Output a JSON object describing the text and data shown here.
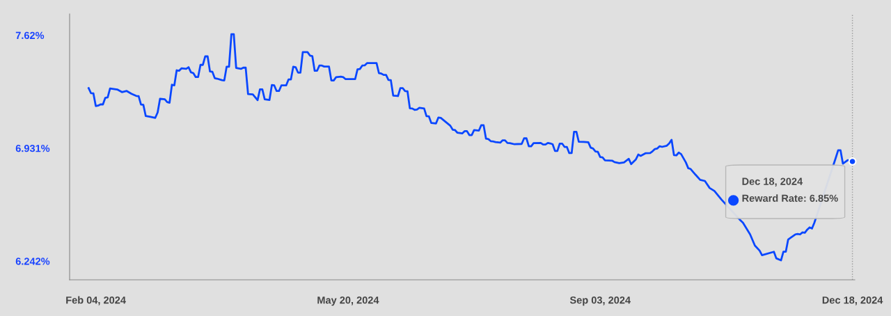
{
  "chart_data": {
    "type": "line",
    "x": [
      "2024-02-01",
      "2024-02-02",
      "2024-02-03",
      "2024-02-04",
      "2024-02-05",
      "2024-02-06",
      "2024-02-07",
      "2024-02-08",
      "2024-02-09",
      "2024-02-10",
      "2024-02-11",
      "2024-02-13",
      "2024-02-15",
      "2024-02-17",
      "2024-02-19",
      "2024-02-21",
      "2024-02-22",
      "2024-02-23",
      "2024-02-24",
      "2024-02-25",
      "2024-02-27",
      "2024-02-29",
      "2024-03-01",
      "2024-03-02",
      "2024-03-04",
      "2024-03-05",
      "2024-03-06",
      "2024-03-07",
      "2024-03-08",
      "2024-03-09",
      "2024-03-10",
      "2024-03-11",
      "2024-03-13",
      "2024-03-14",
      "2024-03-15",
      "2024-03-16",
      "2024-03-17",
      "2024-03-18",
      "2024-03-19",
      "2024-03-20",
      "2024-03-21",
      "2024-03-22",
      "2024-03-23",
      "2024-03-24",
      "2024-03-25",
      "2024-03-26",
      "2024-03-28",
      "2024-03-29",
      "2024-03-30",
      "2024-03-31",
      "2024-04-01",
      "2024-04-02",
      "2024-04-03",
      "2024-04-05",
      "2024-04-06",
      "2024-04-07",
      "2024-04-08",
      "2024-04-10",
      "2024-04-12",
      "2024-04-13",
      "2024-04-14",
      "2024-04-15",
      "2024-04-17",
      "2024-04-18",
      "2024-04-19",
      "2024-04-20",
      "2024-04-21",
      "2024-04-22",
      "2024-04-24",
      "2024-04-25",
      "2024-04-26",
      "2024-04-27",
      "2024-04-28",
      "2024-04-29",
      "2024-04-30",
      "2024-05-01",
      "2024-05-03",
      "2024-05-04",
      "2024-05-05",
      "2024-05-06",
      "2024-05-07",
      "2024-05-08",
      "2024-05-09",
      "2024-05-10",
      "2024-05-12",
      "2024-05-13",
      "2024-05-14",
      "2024-05-15",
      "2024-05-17",
      "2024-05-18",
      "2024-05-19",
      "2024-05-23",
      "2024-05-24",
      "2024-05-25",
      "2024-05-26",
      "2024-05-27",
      "2024-05-28",
      "2024-06-01",
      "2024-06-02",
      "2024-06-03",
      "2024-06-04",
      "2024-06-05",
      "2024-06-06",
      "2024-06-07",
      "2024-06-08",
      "2024-06-10",
      "2024-06-11",
      "2024-06-12",
      "2024-06-13",
      "2024-06-14",
      "2024-06-15",
      "2024-06-16",
      "2024-06-17",
      "2024-06-18",
      "2024-06-19",
      "2024-06-21",
      "2024-06-22",
      "2024-06-23",
      "2024-06-24",
      "2024-06-26",
      "2024-06-27",
      "2024-06-28",
      "2024-07-02",
      "2024-07-03",
      "2024-07-04",
      "2024-07-05",
      "2024-07-07",
      "2024-07-08",
      "2024-07-09",
      "2024-07-10",
      "2024-07-11",
      "2024-07-12",
      "2024-07-14",
      "2024-07-15",
      "2024-07-16",
      "2024-07-17",
      "2024-07-18",
      "2024-07-19",
      "2024-07-20",
      "2024-07-21",
      "2024-07-23",
      "2024-07-24",
      "2024-07-25",
      "2024-07-26",
      "2024-07-27",
      "2024-07-29",
      "2024-08-01",
      "2024-08-02",
      "2024-08-03",
      "2024-08-04",
      "2024-08-05",
      "2024-08-06",
      "2024-08-09",
      "2024-08-10",
      "2024-08-11",
      "2024-08-12",
      "2024-08-13",
      "2024-08-14",
      "2024-08-15",
      "2024-08-16",
      "2024-08-17",
      "2024-08-18",
      "2024-08-19",
      "2024-08-20",
      "2024-08-21",
      "2024-08-22",
      "2024-08-23",
      "2024-08-24",
      "2024-08-25",
      "2024-08-27",
      "2024-08-29",
      "2024-08-30",
      "2024-08-31",
      "2024-09-01",
      "2024-09-02",
      "2024-09-03",
      "2024-09-04",
      "2024-09-05",
      "2024-09-08",
      "2024-09-09",
      "2024-09-11",
      "2024-09-13",
      "2024-09-15",
      "2024-09-16",
      "2024-09-18",
      "2024-09-19",
      "2024-09-20",
      "2024-09-22",
      "2024-09-24",
      "2024-09-25",
      "2024-09-26",
      "2024-09-27",
      "2024-09-28",
      "2024-09-29",
      "2024-10-01",
      "2024-10-02",
      "2024-10-03",
      "2024-10-04",
      "2024-10-05",
      "2024-10-06",
      "2024-10-07",
      "2024-10-09",
      "2024-10-10",
      "2024-10-11",
      "2024-10-13",
      "2024-10-15",
      "2024-10-17",
      "2024-10-19",
      "2024-10-21",
      "2024-10-24",
      "2024-11-01",
      "2024-11-02",
      "2024-11-05",
      "2024-11-07",
      "2024-11-09",
      "2024-11-10",
      "2024-11-15",
      "2024-11-16",
      "2024-11-18",
      "2024-11-19",
      "2024-11-20",
      "2024-11-21",
      "2024-11-22",
      "2024-11-24",
      "2024-11-25",
      "2024-11-26",
      "2024-11-27",
      "2024-11-28",
      "2024-11-29",
      "2024-11-30",
      "2024-12-01",
      "2024-12-02",
      "2024-12-11",
      "2024-12-12",
      "2024-12-13",
      "2024-12-14",
      "2024-12-16",
      "2024-12-18"
    ],
    "series": [
      {
        "color": "#0a47ff",
        "values": [
          7.297,
          7.266,
          7.265,
          7.188,
          7.191,
          7.198,
          7.198,
          7.238,
          7.241,
          7.295,
          7.293,
          7.289,
          7.273,
          7.28,
          7.263,
          7.25,
          7.248,
          7.197,
          7.195,
          7.127,
          7.122,
          7.116,
          7.149,
          7.232,
          7.229,
          7.212,
          7.208,
          7.318,
          7.314,
          7.406,
          7.403,
          7.418,
          7.415,
          7.425,
          7.394,
          7.389,
          7.365,
          7.365,
          7.439,
          7.439,
          7.491,
          7.491,
          7.399,
          7.397,
          7.358,
          7.355,
          7.346,
          7.344,
          7.428,
          7.428,
          7.626,
          7.626,
          7.42,
          7.415,
          7.422,
          7.422,
          7.261,
          7.259,
          7.224,
          7.29,
          7.29,
          7.229,
          7.225,
          7.316,
          7.314,
          7.28,
          7.28,
          7.314,
          7.314,
          7.35,
          7.35,
          7.428,
          7.425,
          7.392,
          7.392,
          7.517,
          7.517,
          7.496,
          7.493,
          7.403,
          7.403,
          7.435,
          7.435,
          7.429,
          7.429,
          7.344,
          7.344,
          7.364,
          7.367,
          7.364,
          7.352,
          7.352,
          7.412,
          7.414,
          7.435,
          7.436,
          7.45,
          7.45,
          7.389,
          7.386,
          7.378,
          7.378,
          7.347,
          7.346,
          7.252,
          7.249,
          7.297,
          7.297,
          7.279,
          7.278,
          7.174,
          7.173,
          7.165,
          7.167,
          7.177,
          7.173,
          7.126,
          7.125,
          7.085,
          7.082,
          7.118,
          7.116,
          7.068,
          7.044,
          7.041,
          7.025,
          7.021,
          7.035,
          7.035,
          7.011,
          7.011,
          7.041,
          7.038,
          7.071,
          7.071,
          6.989,
          6.986,
          6.974,
          6.972,
          6.968,
          6.965,
          6.979,
          6.979,
          6.963,
          6.962,
          6.955,
          6.957,
          6.991,
          6.991,
          6.943,
          6.943,
          6.962,
          6.963,
          6.953,
          6.953,
          6.963,
          6.96,
          6.955,
          6.914,
          6.914,
          6.959,
          6.959,
          6.939,
          6.938,
          6.901,
          6.901,
          7.031,
          7.031,
          6.97,
          6.969,
          6.967,
          6.934,
          6.929,
          6.911,
          6.909,
          6.877,
          6.875,
          6.857,
          6.855,
          6.846,
          6.84,
          6.844,
          6.866,
          6.834,
          6.863,
          6.892,
          6.884,
          6.9,
          6.901,
          6.912,
          6.926,
          6.929,
          6.943,
          6.939,
          6.946,
          6.96,
          6.982,
          6.889,
          6.887,
          6.904,
          6.895,
          6.844,
          6.809,
          6.804,
          6.77,
          6.738,
          6.731,
          6.688,
          6.67,
          6.617,
          6.49,
          6.476,
          6.405,
          6.337,
          6.306,
          6.278,
          6.299,
          6.259,
          6.247,
          6.299,
          6.299,
          6.374,
          6.384,
          6.405,
          6.408,
          6.405,
          6.417,
          6.415,
          6.434,
          6.448,
          6.441,
          6.476,
          6.872,
          6.918,
          6.918,
          6.837,
          6.858,
          6.85
        ]
      }
    ],
    "xlim": [
      "2024-01-24",
      "2024-12-19"
    ],
    "xticks": [
      {
        "value": "2024-02-04",
        "label": "Feb 04, 2024"
      },
      {
        "value": "2024-05-20",
        "label": "May 20, 2024"
      },
      {
        "value": "2024-09-03",
        "label": "Sep 03, 2024"
      },
      {
        "value": "2024-12-18",
        "label": "Dec 18, 2024"
      }
    ],
    "ylim": [
      6.128,
      7.75
    ],
    "yticks": [
      {
        "value": 6.242,
        "label": "6.242%"
      },
      {
        "value": 6.931,
        "label": "6.931%"
      },
      {
        "value": 7.62,
        "label": "7.62%"
      }
    ],
    "ref_lines": [
      {
        "axis": "x",
        "value": "2024-12-18",
        "color": "#999999",
        "line_style": "dotted"
      }
    ],
    "annotations": [
      "Dec 18, 2024\nReward Rate: 6.85%"
    ],
    "grid": false,
    "marker": "none",
    "line_style": "solid"
  }
}
